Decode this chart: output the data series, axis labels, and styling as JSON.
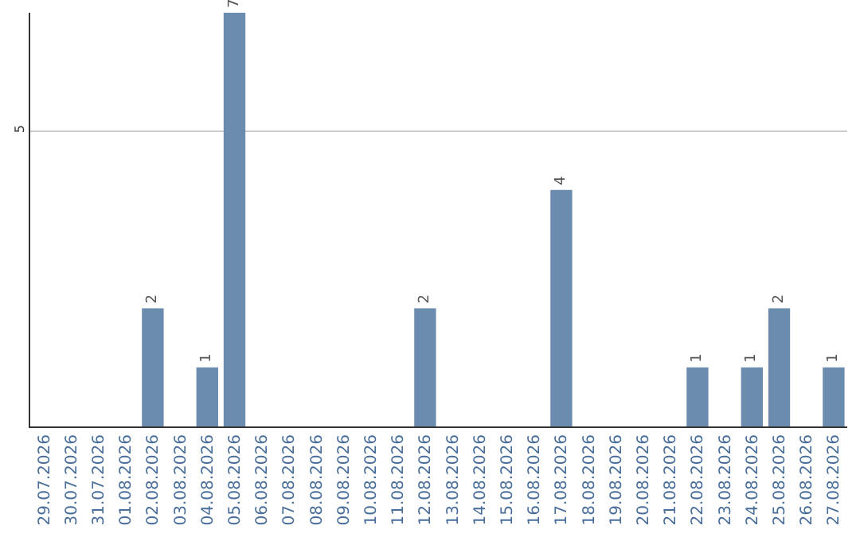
{
  "chart_data": {
    "type": "bar",
    "categories": [
      "29.07.2026",
      "30.07.2026",
      "31.07.2026",
      "01.08.2026",
      "02.08.2026",
      "03.08.2026",
      "04.08.2026",
      "05.08.2026",
      "06.08.2026",
      "07.08.2026",
      "08.08.2026",
      "09.08.2026",
      "10.08.2026",
      "11.08.2026",
      "12.08.2026",
      "13.08.2026",
      "14.08.2026",
      "15.08.2026",
      "16.08.2026",
      "17.08.2026",
      "18.08.2026",
      "19.08.2026",
      "20.08.2026",
      "21.08.2026",
      "22.08.2026",
      "23.08.2026",
      "24.08.2026",
      "25.08.2026",
      "26.08.2026",
      "27.08.2026"
    ],
    "values": [
      0,
      0,
      0,
      0,
      2,
      0,
      1,
      7,
      0,
      0,
      0,
      0,
      0,
      0,
      2,
      0,
      0,
      0,
      0,
      4,
      0,
      0,
      0,
      0,
      1,
      0,
      1,
      2,
      0,
      1
    ],
    "value_labels": [
      null,
      null,
      null,
      null,
      "2",
      null,
      "1",
      "7",
      null,
      null,
      null,
      null,
      null,
      null,
      "2",
      null,
      null,
      null,
      null,
      "4",
      null,
      null,
      null,
      null,
      "1",
      null,
      "1",
      "2",
      null,
      "1"
    ],
    "color": "#6b8cae",
    "ylim": [
      0,
      7
    ],
    "yticks": [
      5
    ],
    "grid": "y",
    "legend": false
  }
}
